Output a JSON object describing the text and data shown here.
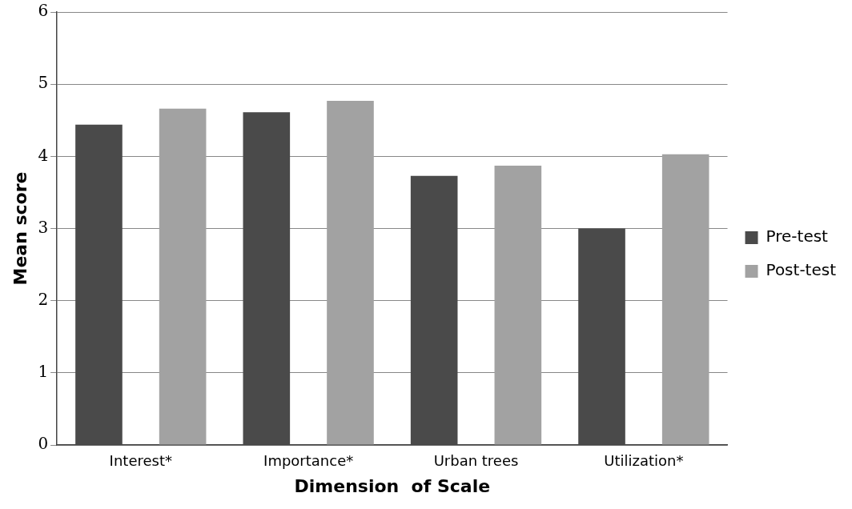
{
  "chart_data": {
    "type": "bar",
    "xlabel": "Dimension  of Scale",
    "ylabel": "Mean score",
    "categories": [
      "Interest*",
      "Importance*",
      "Urban trees",
      "Utilization*"
    ],
    "series": [
      {
        "name": "Pre-test",
        "color": "#4a4a4a",
        "values": [
          4.44,
          4.61,
          3.73,
          3.0
        ]
      },
      {
        "name": "Post-test",
        "color": "#a2a2a2",
        "values": [
          4.66,
          4.77,
          3.87,
          4.03
        ]
      }
    ],
    "ylim": [
      0,
      6
    ],
    "yticks": [
      0,
      1,
      2,
      3,
      4,
      5,
      6
    ],
    "grid": "y",
    "legend": "right"
  }
}
